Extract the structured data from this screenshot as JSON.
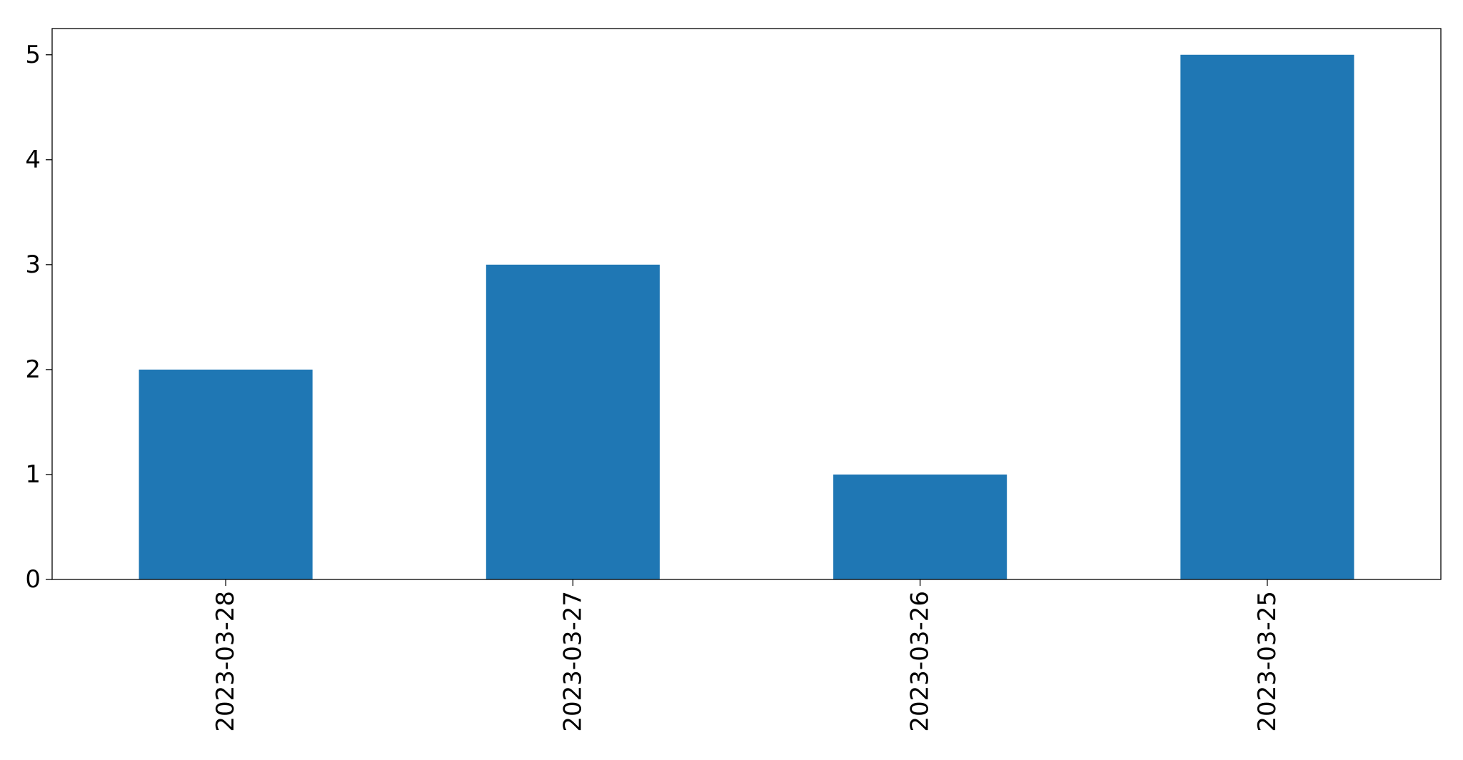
{
  "chart_data": {
    "type": "bar",
    "categories": [
      "2023-03-28",
      "2023-03-27",
      "2023-03-26",
      "2023-03-25"
    ],
    "values": [
      2,
      3,
      1,
      5
    ],
    "title": "",
    "xlabel": "",
    "ylabel": "",
    "ylim": [
      0,
      5.25
    ],
    "yticks": [
      0,
      1,
      2,
      3,
      4,
      5
    ],
    "xtick_rotation": "vertical",
    "grid": false,
    "legend": "none",
    "bar_color": "#1f77b4"
  }
}
